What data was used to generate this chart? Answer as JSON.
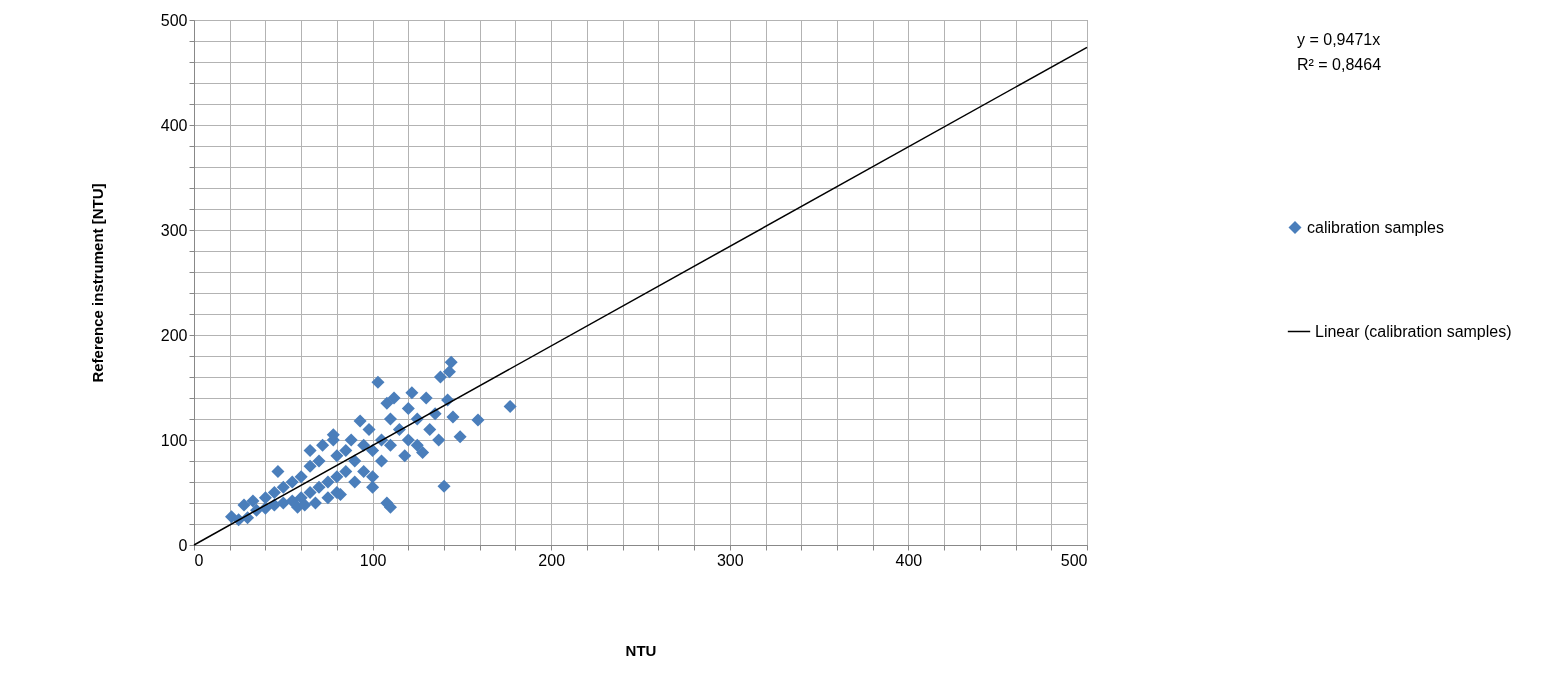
{
  "chart_data": {
    "type": "scatter",
    "xlabel": "NTU",
    "ylabel": "Reference instrument [NTU]",
    "xlim": [
      0,
      500
    ],
    "ylim": [
      0,
      500
    ],
    "xticks": [
      0,
      {
        "value": 20,
        "label": null
      },
      {
        "value": 40,
        "label": null
      },
      {
        "value": 60,
        "label": null
      },
      {
        "value": 80,
        "label": null
      },
      100,
      {
        "value": 120,
        "label": null
      },
      {
        "value": 140,
        "label": null
      },
      {
        "value": 160,
        "label": null
      },
      {
        "value": 180,
        "label": null
      },
      200,
      {
        "value": 220,
        "label": null
      },
      {
        "value": 240,
        "label": null
      },
      {
        "value": 260,
        "label": null
      },
      {
        "value": 280,
        "label": null
      },
      300,
      {
        "value": 320,
        "label": null
      },
      {
        "value": 340,
        "label": null
      },
      {
        "value": 360,
        "label": null
      },
      {
        "value": 380,
        "label": null
      },
      400,
      {
        "value": 420,
        "label": null
      },
      {
        "value": 440,
        "label": null
      },
      {
        "value": 460,
        "label": null
      },
      {
        "value": 480,
        "label": null
      },
      500
    ],
    "yticks": [
      0,
      {
        "value": 20,
        "label": null
      },
      {
        "value": 40,
        "label": null
      },
      {
        "value": 60,
        "label": null
      },
      {
        "value": 80,
        "label": null
      },
      100,
      {
        "value": 120,
        "label": null
      },
      {
        "value": 140,
        "label": null
      },
      {
        "value": 160,
        "label": null
      },
      {
        "value": 180,
        "label": null
      },
      200,
      {
        "value": 220,
        "label": null
      },
      {
        "value": 240,
        "label": null
      },
      {
        "value": 260,
        "label": null
      },
      {
        "value": 280,
        "label": null
      },
      300,
      {
        "value": 320,
        "label": null
      },
      {
        "value": 340,
        "label": null
      },
      {
        "value": 360,
        "label": null
      },
      {
        "value": 380,
        "label": null
      },
      400,
      {
        "value": 420,
        "label": null
      },
      {
        "value": 440,
        "label": null
      },
      {
        "value": 460,
        "label": null
      },
      {
        "value": 480,
        "label": null
      },
      500
    ],
    "grid": true,
    "legend": "right",
    "marker": "diamond",
    "annotations": [
      "y = 0,9471x",
      "R² = 0,8464"
    ],
    "series": [
      {
        "name": "calibration samples",
        "color": "#4a7ebb",
        "x": [
          21,
          25,
          30,
          28,
          33,
          35,
          40,
          40,
          45,
          45,
          47,
          50,
          50,
          55,
          55,
          58,
          60,
          60,
          62,
          65,
          65,
          65,
          68,
          70,
          70,
          72,
          75,
          75,
          78,
          78,
          80,
          80,
          80,
          82,
          85,
          85,
          88,
          90,
          90,
          93,
          95,
          95,
          98,
          100,
          100,
          100,
          103,
          105,
          105,
          108,
          108,
          110,
          110,
          110,
          112,
          115,
          118,
          120,
          120,
          122,
          125,
          125,
          128,
          130,
          132,
          135,
          137,
          138,
          140,
          142,
          143,
          144,
          145,
          149,
          159,
          177
        ],
        "values": [
          27,
          24,
          26,
          38,
          42,
          33,
          45,
          35,
          50,
          38,
          70,
          55,
          40,
          60,
          42,
          36,
          65,
          45,
          38,
          75,
          50,
          90,
          40,
          80,
          55,
          95,
          60,
          45,
          100,
          105,
          85,
          65,
          50,
          48,
          90,
          70,
          100,
          80,
          60,
          118,
          95,
          70,
          110,
          90,
          55,
          65,
          155,
          100,
          80,
          135,
          40,
          36,
          120,
          95,
          140,
          110,
          85,
          130,
          100,
          145,
          120,
          95,
          88,
          140,
          110,
          125,
          100,
          160,
          56,
          138,
          165,
          174,
          122,
          103,
          119,
          132
        ]
      },
      {
        "name": "Linear (calibration samples)",
        "color": "#000000",
        "type": "line",
        "line_style": "solid",
        "marker": "none",
        "x": [
          0,
          500
        ],
        "values": [
          0,
          474
        ]
      }
    ]
  }
}
